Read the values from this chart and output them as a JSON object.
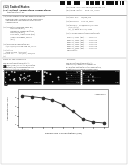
{
  "bg_color": "#ffffff",
  "page_bg": "#ffffff",
  "barcode_color": "#111111",
  "text_color": "#444444",
  "dark_text": "#222222",
  "header_line_color": "#888888",
  "micro_bg": "#080808",
  "graph_bg": "#ffffff",
  "graph_line_color": "#333333",
  "graph_dot_color": "#333333",
  "x_values": [
    0.001,
    0.003,
    0.01,
    0.03,
    0.1,
    0.3,
    1.0,
    3.0,
    10.0
  ],
  "y_values": [
    8.5,
    8.3,
    8.0,
    7.5,
    6.5,
    5.0,
    3.2,
    2.6,
    2.4
  ],
  "y_ticks": [
    2,
    4,
    6,
    8
  ],
  "graph_x_label": "Rapamycin Concentration (nM)",
  "graph_y_label": "Aggregates per cell",
  "fig_a_label": "a",
  "fig_b_label": "b",
  "micro_labels": [
    "0.001 uM",
    "1 uM",
    "1 uM"
  ],
  "n_dots": [
    25,
    12,
    6
  ]
}
